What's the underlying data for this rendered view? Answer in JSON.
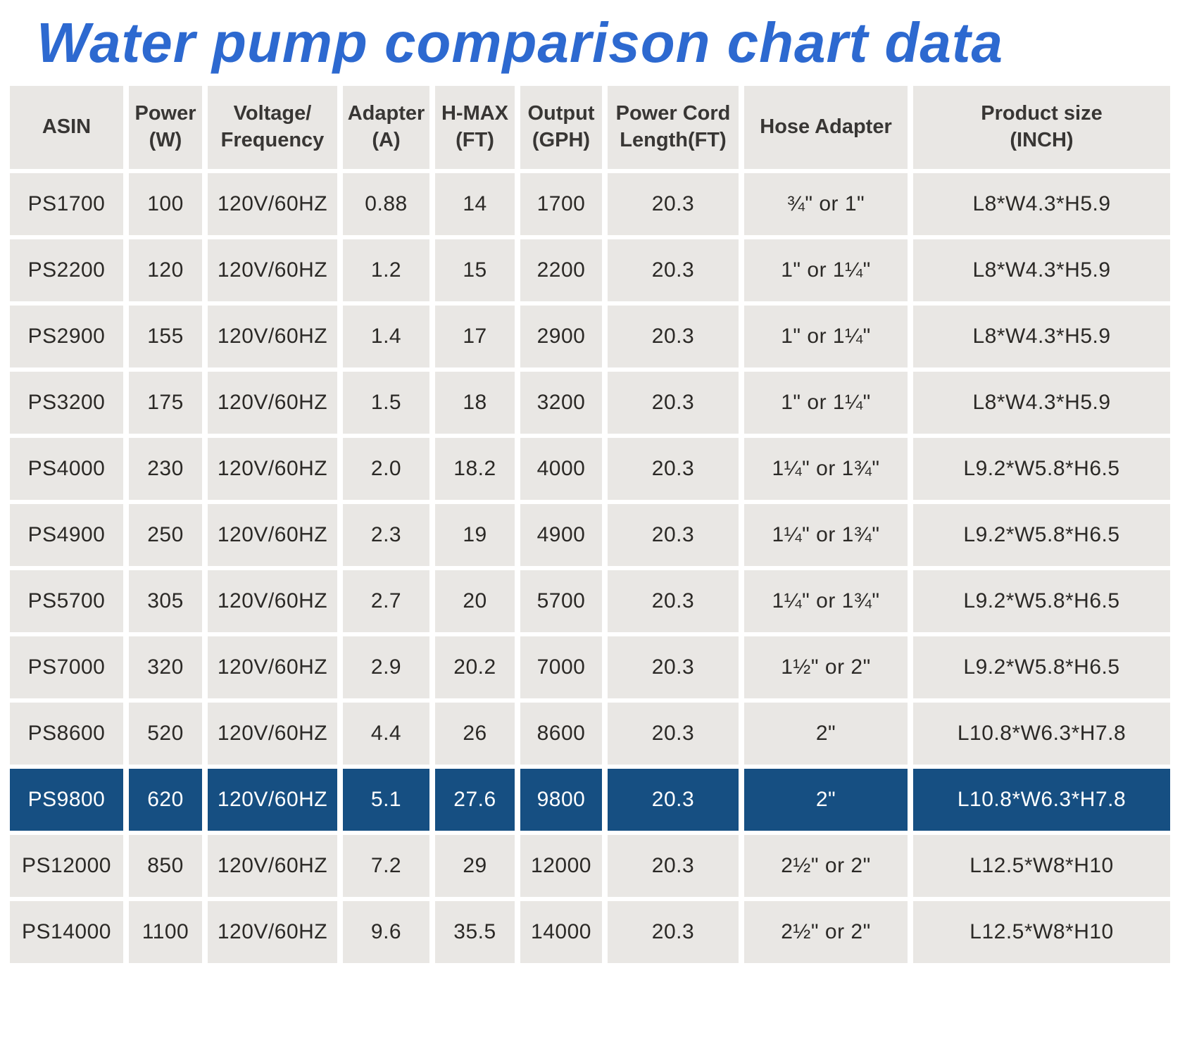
{
  "title": "Water pump comparison chart data",
  "colors": {
    "title_blue": "#2d69d0",
    "cell_bg": "#e9e7e4",
    "highlight_bg": "#164f82",
    "highlight_text": "#ffffff",
    "body_text": "#2b2926"
  },
  "chart_data": {
    "type": "table",
    "title": "Water pump comparison chart data",
    "columns": [
      "ASIN",
      "Power\n(W)",
      "Voltage/\nFrequency",
      "Adapter\n(A)",
      "H-MAX\n(FT)",
      "Output\n(GPH)",
      "Power Cord\nLength(FT)",
      "Hose Adapter",
      "Product size\n(INCH)"
    ],
    "highlighted_row": "PS9800",
    "rows": [
      {
        "highlight": false,
        "cells": [
          "PS1700",
          "100",
          "120V/60HZ",
          "0.88",
          "14",
          "1700",
          "20.3",
          "¾\" or 1\"",
          "L8*W4.3*H5.9"
        ]
      },
      {
        "highlight": false,
        "cells": [
          "PS2200",
          "120",
          "120V/60HZ",
          "1.2",
          "15",
          "2200",
          "20.3",
          "1\" or 1¼\"",
          "L8*W4.3*H5.9"
        ]
      },
      {
        "highlight": false,
        "cells": [
          "PS2900",
          "155",
          "120V/60HZ",
          "1.4",
          "17",
          "2900",
          "20.3",
          "1\" or 1¼\"",
          "L8*W4.3*H5.9"
        ]
      },
      {
        "highlight": false,
        "cells": [
          "PS3200",
          "175",
          "120V/60HZ",
          "1.5",
          "18",
          "3200",
          "20.3",
          "1\" or 1¼\"",
          "L8*W4.3*H5.9"
        ]
      },
      {
        "highlight": false,
        "cells": [
          "PS4000",
          "230",
          "120V/60HZ",
          "2.0",
          "18.2",
          "4000",
          "20.3",
          "1¼\" or 1¾\"",
          "L9.2*W5.8*H6.5"
        ]
      },
      {
        "highlight": false,
        "cells": [
          "PS4900",
          "250",
          "120V/60HZ",
          "2.3",
          "19",
          "4900",
          "20.3",
          "1¼\" or 1¾\"",
          "L9.2*W5.8*H6.5"
        ]
      },
      {
        "highlight": false,
        "cells": [
          "PS5700",
          "305",
          "120V/60HZ",
          "2.7",
          "20",
          "5700",
          "20.3",
          "1¼\" or 1¾\"",
          "L9.2*W5.8*H6.5"
        ]
      },
      {
        "highlight": false,
        "cells": [
          "PS7000",
          "320",
          "120V/60HZ",
          "2.9",
          "20.2",
          "7000",
          "20.3",
          "1½\" or 2\"",
          "L9.2*W5.8*H6.5"
        ]
      },
      {
        "highlight": false,
        "cells": [
          "PS8600",
          "520",
          "120V/60HZ",
          "4.4",
          "26",
          "8600",
          "20.3",
          "2\"",
          "L10.8*W6.3*H7.8"
        ]
      },
      {
        "highlight": true,
        "cells": [
          "PS9800",
          "620",
          "120V/60HZ",
          "5.1",
          "27.6",
          "9800",
          "20.3",
          "2\"",
          "L10.8*W6.3*H7.8"
        ]
      },
      {
        "highlight": false,
        "cells": [
          "PS12000",
          "850",
          "120V/60HZ",
          "7.2",
          "29",
          "12000",
          "20.3",
          "2½\" or 2\"",
          "L12.5*W8*H10"
        ]
      },
      {
        "highlight": false,
        "cells": [
          "PS14000",
          "1100",
          "120V/60HZ",
          "9.6",
          "35.5",
          "14000",
          "20.3",
          "2½\" or 2\"",
          "L12.5*W8*H10"
        ]
      }
    ]
  }
}
